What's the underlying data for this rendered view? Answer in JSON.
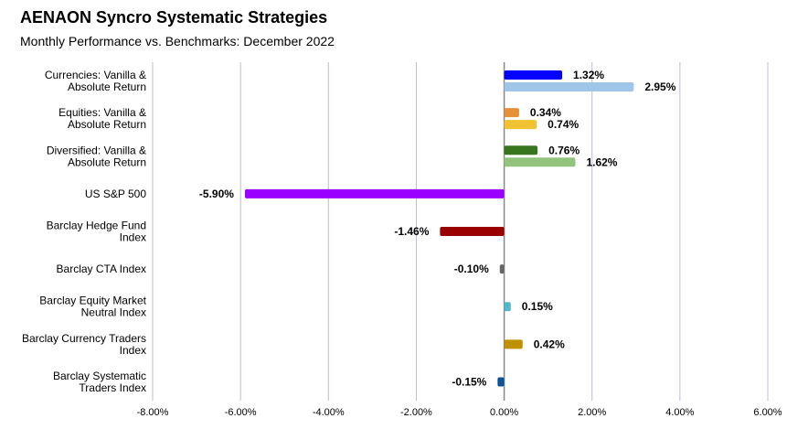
{
  "title": "AENAON Syncro Systematic Strategies",
  "subtitle": "Monthly Performance vs. Benchmarks: December 2022",
  "chart_data": {
    "type": "bar",
    "orientation": "horizontal",
    "title": "AENAON Syncro Systematic Strategies",
    "subtitle": "Monthly Performance vs. Benchmarks: December 2022",
    "xlim": [
      -8,
      6
    ],
    "x_ticks": [
      "-8.00%",
      "-6.00%",
      "-4.00%",
      "-2.00%",
      "0.00%",
      "2.00%",
      "4.00%",
      "6.00%"
    ],
    "grid": "vertical",
    "legend": "none",
    "categories": [
      {
        "label_lines": [
          "Currencies: Vanilla &",
          "Absolute Return"
        ],
        "bars": [
          {
            "value": 1.32,
            "label": "1.32%",
            "color": "#0000ff"
          },
          {
            "value": 2.95,
            "label": "2.95%",
            "color": "#9fc5e8"
          }
        ]
      },
      {
        "label_lines": [
          "Equities: Vanilla &",
          "Absolute Return"
        ],
        "bars": [
          {
            "value": 0.34,
            "label": "0.34%",
            "color": "#e69138"
          },
          {
            "value": 0.74,
            "label": "0.74%",
            "color": "#f1c232"
          }
        ]
      },
      {
        "label_lines": [
          "Diversified: Vanilla &",
          "Absolute Return"
        ],
        "bars": [
          {
            "value": 0.76,
            "label": "0.76%",
            "color": "#38761d"
          },
          {
            "value": 1.62,
            "label": "1.62%",
            "color": "#93c47d"
          }
        ]
      },
      {
        "label_lines": [
          "US S&P 500"
        ],
        "bars": [
          {
            "value": -5.9,
            "label": "-5.90%",
            "color": "#9900ff"
          }
        ]
      },
      {
        "label_lines": [
          "Barclay Hedge Fund",
          "Index"
        ],
        "bars": [
          {
            "value": -1.46,
            "label": "-1.46%",
            "color": "#990000"
          }
        ]
      },
      {
        "label_lines": [
          "Barclay CTA Index"
        ],
        "bars": [
          {
            "value": -0.1,
            "label": "-0.10%",
            "color": "#666666"
          }
        ]
      },
      {
        "label_lines": [
          "Barclay Equity Market",
          "Neutral Index"
        ],
        "bars": [
          {
            "value": 0.15,
            "label": "0.15%",
            "color": "#4fb9c8"
          }
        ]
      },
      {
        "label_lines": [
          "Barclay Currency Traders",
          "Index"
        ],
        "bars": [
          {
            "value": 0.42,
            "label": "0.42%",
            "color": "#bf9000"
          }
        ]
      },
      {
        "label_lines": [
          "Barclay Systematic",
          "Traders Index"
        ],
        "bars": [
          {
            "value": -0.15,
            "label": "-0.15%",
            "color": "#0b5394"
          }
        ]
      }
    ]
  }
}
